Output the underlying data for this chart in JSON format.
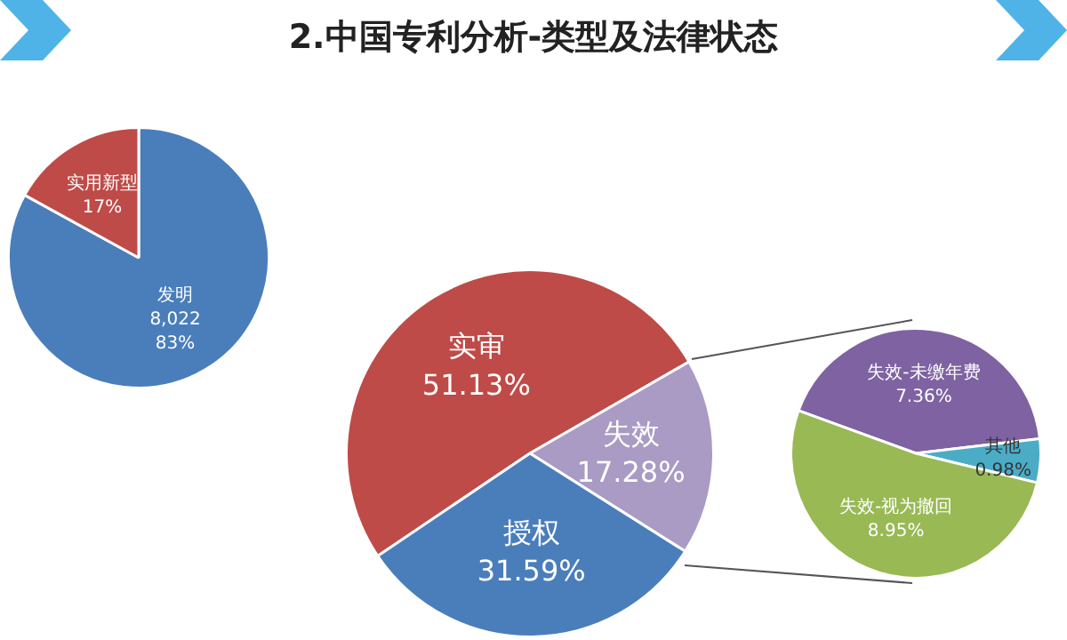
{
  "chart_data": [
    {
      "type": "pie",
      "title": "2.中国专利分析-类型及法律状态",
      "categories": [
        "发明",
        "实用新型"
      ],
      "values": [
        83,
        17
      ],
      "colors": [
        "#4a7ebb",
        "#be4b48"
      ],
      "value_labels": [
        "8,022\n83%",
        "17%"
      ],
      "legend": false
    },
    {
      "type": "pie",
      "categories": [
        "实审",
        "失效",
        "授权"
      ],
      "values": [
        51.13,
        17.28,
        31.59
      ],
      "colors": [
        "#be4b48",
        "#a99bc4",
        "#4a7ebb"
      ],
      "value_labels": [
        "51.13%",
        "17.28%",
        "31.59%"
      ],
      "legend": false
    },
    {
      "type": "pie",
      "categories": [
        "失效-未缴年费",
        "其他",
        "失效-视为撤回"
      ],
      "values": [
        7.36,
        0.98,
        8.95
      ],
      "colors": [
        "#7e62a1",
        "#4bacc6",
        "#98b954"
      ],
      "value_labels": [
        "7.36%",
        "0.98%",
        "8.95%"
      ],
      "legend": false
    }
  ]
}
